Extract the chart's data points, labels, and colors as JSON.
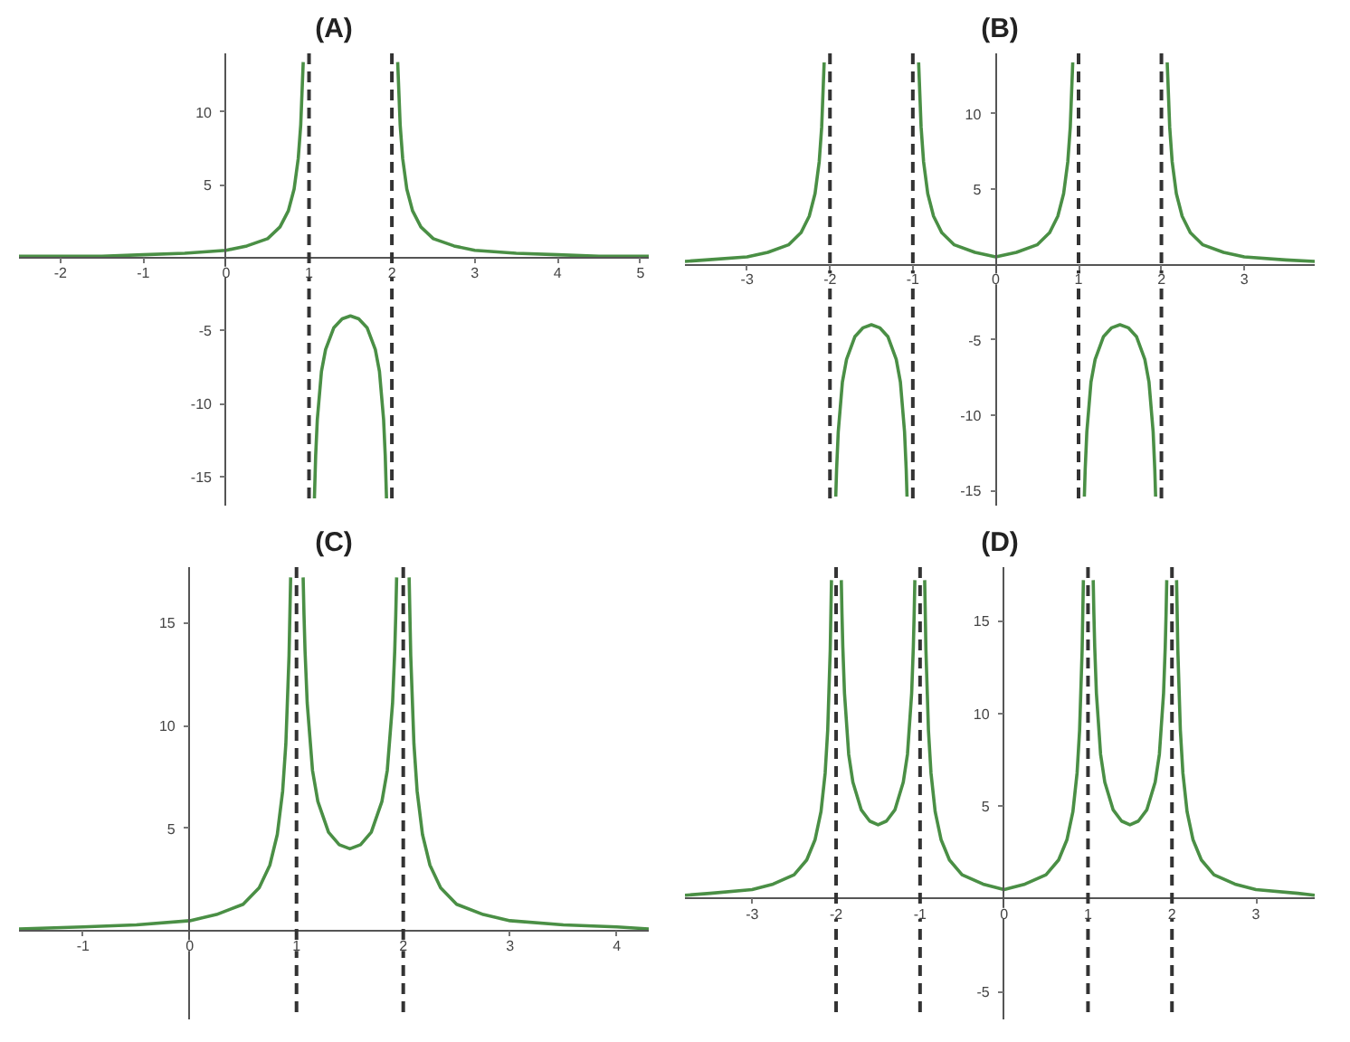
{
  "chart_data": [
    {
      "type": "line",
      "title": "(A)",
      "line_style": "solid",
      "xlim": [
        -2.5,
        5.1
      ],
      "ylim": [
        -17,
        14
      ],
      "xticks": [
        -2,
        -1,
        0,
        1,
        2,
        3,
        4,
        5
      ],
      "yticks": [
        -15,
        -10,
        -5,
        5,
        10
      ],
      "x": [
        -2.5,
        -2,
        -1.5,
        -1,
        -0.5,
        0,
        0.25,
        0.5,
        0.65,
        0.75,
        0.82,
        0.87,
        0.9,
        0.93,
        1,
        1.065,
        1.08,
        1.1,
        1.15,
        1.2,
        1.3,
        1.4,
        1.5,
        1.6,
        1.7,
        1.8,
        1.85,
        1.9,
        1.92,
        1.935,
        2,
        2.07,
        2.1,
        2.13,
        2.18,
        2.25,
        2.35,
        2.5,
        2.75,
        3,
        3.5,
        4,
        4.5,
        5,
        5.1
      ],
      "series": [
        {
          "color": "#4a8f45",
          "values": [
            0.1,
            0.1,
            0.1,
            0.2,
            0.3,
            0.5,
            0.8,
            1.3,
            2.1,
            3.2,
            4.7,
            6.8,
            9.1,
            13.4,
            null,
            -16.5,
            -13.6,
            -11.1,
            -7.8,
            -6.3,
            -4.8,
            -4.2,
            -4,
            -4.2,
            -4.8,
            -6.3,
            -7.8,
            -11.1,
            -13.6,
            -16.5,
            null,
            13.4,
            9.1,
            6.8,
            4.7,
            3.2,
            2.1,
            1.3,
            0.8,
            0.5,
            0.3,
            0.2,
            0.1,
            0.1,
            0.1
          ]
        }
      ],
      "ref_lines": [
        {
          "axis": "x",
          "value": 1,
          "color": "#333333",
          "line_style": "dashed"
        },
        {
          "axis": "x",
          "value": 2,
          "color": "#333333",
          "line_style": "dashed"
        }
      ]
    },
    {
      "type": "line",
      "title": "(B)",
      "line_style": "solid",
      "xlim": [
        -3.75,
        3.85
      ],
      "ylim": [
        -16,
        14
      ],
      "xticks": [
        -3,
        -2,
        -1,
        0,
        1,
        2,
        3
      ],
      "yticks": [
        -15,
        -10,
        -5,
        5,
        10
      ],
      "x": [
        -3.75,
        -3.5,
        -3,
        -2.75,
        -2.5,
        -2.35,
        -2.25,
        -2.18,
        -2.13,
        -2.1,
        -2.07,
        -2,
        -1.93,
        -1.92,
        -1.9,
        -1.85,
        -1.8,
        -1.7,
        -1.6,
        -1.5,
        -1.4,
        -1.3,
        -1.2,
        -1.15,
        -1.1,
        -1.08,
        -1.07,
        -1,
        -0.93,
        -0.9,
        -0.87,
        -0.82,
        -0.75,
        -0.65,
        -0.5,
        -0.25,
        0,
        0.25,
        0.5,
        0.65,
        0.75,
        0.82,
        0.87,
        0.9,
        0.93,
        1,
        1.07,
        1.08,
        1.1,
        1.15,
        1.2,
        1.3,
        1.4,
        1.5,
        1.6,
        1.7,
        1.8,
        1.85,
        1.9,
        1.92,
        1.93,
        2,
        2.07,
        2.1,
        2.13,
        2.18,
        2.25,
        2.35,
        2.5,
        2.75,
        3,
        3.5,
        3.85
      ],
      "series": [
        {
          "color": "#4a8f45",
          "values": [
            0.2,
            0.3,
            0.5,
            0.8,
            1.3,
            2.1,
            3.2,
            4.7,
            6.8,
            9.1,
            13.4,
            null,
            -15.4,
            -13.6,
            -11.1,
            -7.8,
            -6.3,
            -4.8,
            -4.2,
            -4,
            -4.2,
            -4.8,
            -6.3,
            -7.8,
            -11.1,
            -13.6,
            -15.4,
            null,
            13.4,
            9.1,
            6.8,
            4.7,
            3.2,
            2.1,
            1.3,
            0.8,
            0.5,
            0.8,
            1.3,
            2.1,
            3.2,
            4.7,
            6.8,
            9.1,
            13.4,
            null,
            -15.4,
            -13.6,
            -11.1,
            -7.8,
            -6.3,
            -4.8,
            -4.2,
            -4,
            -4.2,
            -4.8,
            -6.3,
            -7.8,
            -11.1,
            -13.6,
            -15.4,
            null,
            13.4,
            9.1,
            6.8,
            4.7,
            3.2,
            2.1,
            1.3,
            0.8,
            0.5,
            0.3,
            0.2
          ]
        }
      ],
      "ref_lines": [
        {
          "axis": "x",
          "value": -2,
          "color": "#333333",
          "line_style": "dashed"
        },
        {
          "axis": "x",
          "value": -1,
          "color": "#333333",
          "line_style": "dashed"
        },
        {
          "axis": "x",
          "value": 1,
          "color": "#333333",
          "line_style": "dashed"
        },
        {
          "axis": "x",
          "value": 2,
          "color": "#333333",
          "line_style": "dashed"
        }
      ]
    },
    {
      "type": "line",
      "title": "(C)",
      "line_style": "solid",
      "xlim": [
        -1.6,
        4.3
      ],
      "ylim": [
        -4.3,
        17.7
      ],
      "xticks": [
        -1,
        0,
        1,
        2,
        3,
        4
      ],
      "yticks": [
        5,
        10,
        15
      ],
      "x": [
        -1.6,
        -1,
        -0.5,
        0,
        0.25,
        0.5,
        0.65,
        0.75,
        0.82,
        0.87,
        0.9,
        0.93,
        0.945,
        1,
        1.062,
        1.07,
        1.08,
        1.1,
        1.15,
        1.2,
        1.3,
        1.4,
        1.5,
        1.6,
        1.7,
        1.8,
        1.85,
        1.9,
        1.92,
        1.93,
        1.938,
        2,
        2.055,
        2.07,
        2.1,
        2.13,
        2.18,
        2.25,
        2.35,
        2.5,
        2.75,
        3,
        3.5,
        4,
        4.3
      ],
      "series": [
        {
          "color": "#4a8f45",
          "values": [
            0.1,
            0.2,
            0.3,
            0.5,
            0.8,
            1.3,
            2.1,
            3.2,
            4.7,
            6.8,
            9.1,
            13.4,
            17.2,
            null,
            17.2,
            15.4,
            13.6,
            11.1,
            7.8,
            6.3,
            4.8,
            4.2,
            4,
            4.2,
            4.8,
            6.3,
            7.8,
            11.1,
            13.6,
            15.4,
            17.2,
            null,
            17.2,
            13.4,
            9.1,
            6.8,
            4.7,
            3.2,
            2.1,
            1.3,
            0.8,
            0.5,
            0.3,
            0.2,
            0.1
          ]
        }
      ],
      "ref_lines": [
        {
          "axis": "x",
          "value": 1,
          "color": "#333333",
          "line_style": "dashed"
        },
        {
          "axis": "x",
          "value": 2,
          "color": "#333333",
          "line_style": "dashed"
        }
      ]
    },
    {
      "type": "line",
      "title": "(D)",
      "line_style": "solid",
      "xlim": [
        -3.8,
        3.7
      ],
      "ylim": [
        -6.5,
        17.9
      ],
      "xticks": [
        -3,
        -2,
        -1,
        0,
        1,
        2,
        3
      ],
      "yticks": [
        -5,
        5,
        10,
        15
      ],
      "x": [
        -3.8,
        -3.5,
        -3,
        -2.75,
        -2.5,
        -2.35,
        -2.25,
        -2.18,
        -2.13,
        -2.1,
        -2.07,
        -2.055,
        -2,
        -1.938,
        -1.93,
        -1.92,
        -1.9,
        -1.85,
        -1.8,
        -1.7,
        -1.6,
        -1.5,
        -1.4,
        -1.3,
        -1.2,
        -1.15,
        -1.1,
        -1.08,
        -1.07,
        -1.062,
        -1,
        -0.945,
        -0.93,
        -0.9,
        -0.87,
        -0.82,
        -0.75,
        -0.65,
        -0.5,
        -0.25,
        0,
        0.25,
        0.5,
        0.65,
        0.75,
        0.82,
        0.87,
        0.9,
        0.93,
        0.945,
        1,
        1.062,
        1.07,
        1.08,
        1.1,
        1.15,
        1.2,
        1.3,
        1.4,
        1.5,
        1.6,
        1.7,
        1.8,
        1.85,
        1.9,
        1.92,
        1.93,
        1.938,
        2,
        2.055,
        2.07,
        2.1,
        2.13,
        2.18,
        2.25,
        2.35,
        2.5,
        2.75,
        3,
        3.5,
        3.7
      ],
      "series": [
        {
          "color": "#4a8f45",
          "values": [
            0.2,
            0.3,
            0.5,
            0.8,
            1.3,
            2.1,
            3.2,
            4.7,
            6.8,
            9.1,
            13.4,
            17.2,
            null,
            17.2,
            15.4,
            13.6,
            11.1,
            7.8,
            6.3,
            4.8,
            4.2,
            4,
            4.2,
            4.8,
            6.3,
            7.8,
            11.1,
            13.6,
            15.4,
            17.2,
            null,
            17.2,
            13.4,
            9.1,
            6.8,
            4.7,
            3.2,
            2.1,
            1.3,
            0.8,
            0.5,
            0.8,
            1.3,
            2.1,
            3.2,
            4.7,
            6.8,
            9.1,
            13.4,
            17.2,
            null,
            17.2,
            15.4,
            13.6,
            11.1,
            7.8,
            6.3,
            4.8,
            4.2,
            4,
            4.2,
            4.8,
            6.3,
            7.8,
            11.1,
            13.6,
            15.4,
            17.2,
            null,
            17.2,
            13.4,
            9.1,
            6.8,
            4.7,
            3.2,
            2.1,
            1.3,
            0.8,
            0.5,
            0.3,
            0.2
          ]
        }
      ],
      "ref_lines": [
        {
          "axis": "x",
          "value": -2,
          "color": "#333333",
          "line_style": "dashed"
        },
        {
          "axis": "x",
          "value": -1,
          "color": "#333333",
          "line_style": "dashed"
        },
        {
          "axis": "x",
          "value": 1,
          "color": "#333333",
          "line_style": "dashed"
        },
        {
          "axis": "x",
          "value": 2,
          "color": "#333333",
          "line_style": "dashed"
        }
      ]
    }
  ]
}
